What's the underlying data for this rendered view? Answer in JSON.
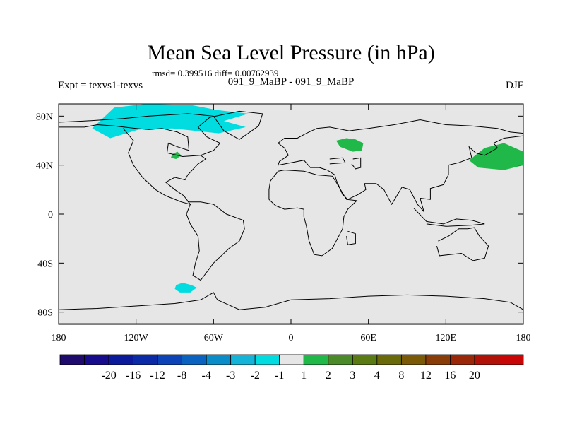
{
  "chart_data": {
    "type": "heatmap",
    "title": "Mean Sea Level Pressure (in hPa)",
    "stats_line": "rmsd= 0.399516 diff= 0.00762939",
    "experiment_label": "Expt = texvs1-texvs",
    "run_label": "091_9_MaBP - 091_9_MaBP",
    "season": "DJF",
    "x_tick_labels": [
      "180",
      "120W",
      "60W",
      "0",
      "60E",
      "120E",
      "180"
    ],
    "x_tick_values": [
      -180,
      -120,
      -60,
      0,
      60,
      120,
      180
    ],
    "y_tick_labels": [
      "80N",
      "40N",
      "0",
      "40S",
      "80S"
    ],
    "y_tick_values": [
      80,
      40,
      0,
      -40,
      -80
    ],
    "xlim": [
      -180,
      180
    ],
    "ylim": [
      -90,
      90
    ],
    "colorbar": {
      "labels": [
        "-20",
        "-16",
        "-12",
        "-8",
        "-4",
        "-3",
        "-2",
        "-1",
        "1",
        "2",
        "3",
        "4",
        "8",
        "12",
        "16",
        "20"
      ],
      "colors": [
        "#1f0a6e",
        "#160c8c",
        "#0a1a9a",
        "#0a2aa8",
        "#0c44b8",
        "#0a63c0",
        "#0a8cc8",
        "#14b4d8",
        "#00dce0",
        "#e6e6e6",
        "#20b848",
        "#4a8a28",
        "#5a7a14",
        "#6a6a0a",
        "#7a5a06",
        "#8a3c08",
        "#9a2808",
        "#b01208",
        "#c80606"
      ]
    },
    "anomaly_regions": [
      {
        "name": "north-america-arctic-negative",
        "category": "-2 to -1",
        "color": "#00dce0",
        "points": [
          [
            -137,
            87
          ],
          [
            -112,
            90
          ],
          [
            -77,
            89
          ],
          [
            -57,
            85
          ],
          [
            -33,
            82
          ],
          [
            -52,
            76
          ],
          [
            -35,
            71
          ],
          [
            -56,
            66
          ],
          [
            -92,
            70
          ],
          [
            -118,
            69
          ],
          [
            -140,
            62
          ],
          [
            -154,
            70
          ]
        ]
      },
      {
        "name": "south-pacific-negative",
        "category": "-2 to -1",
        "color": "#00dce0",
        "points": [
          [
            -89,
            -58
          ],
          [
            -84,
            -56
          ],
          [
            -77,
            -58
          ],
          [
            -73,
            -60
          ],
          [
            -78,
            -64
          ],
          [
            -86,
            -64
          ],
          [
            -90,
            -61
          ]
        ]
      },
      {
        "name": "caspian-positive",
        "category": "1 to 2",
        "color": "#20b848",
        "points": [
          [
            35,
            60
          ],
          [
            43,
            62
          ],
          [
            50,
            61
          ],
          [
            56,
            58
          ],
          [
            55,
            52
          ],
          [
            48,
            51
          ],
          [
            38,
            55
          ]
        ]
      },
      {
        "name": "north-pacific-positive",
        "category": "1 to 2",
        "color": "#20b848",
        "points": [
          [
            138,
            44
          ],
          [
            150,
            54
          ],
          [
            165,
            58
          ],
          [
            180,
            51
          ],
          [
            180,
            40
          ],
          [
            165,
            36
          ],
          [
            145,
            38
          ]
        ]
      },
      {
        "name": "rockies-small-positive",
        "category": "1 to 2",
        "color": "#20b848",
        "points": [
          [
            -92,
            49
          ],
          [
            -88,
            51
          ],
          [
            -85,
            48
          ],
          [
            -89,
            45
          ],
          [
            -93,
            46
          ]
        ]
      }
    ],
    "coastlines": [
      [
        [
          -180,
          71
        ],
        [
          -160,
          71
        ],
        [
          -150,
          73
        ],
        [
          -137,
          72
        ],
        [
          -120,
          70
        ],
        [
          -110,
          69
        ],
        [
          -100,
          70
        ],
        [
          -88,
          67
        ],
        [
          -80,
          63
        ],
        [
          -79,
          52
        ],
        [
          -88,
          55
        ],
        [
          -95,
          58
        ],
        [
          -96,
          50
        ],
        [
          -84,
          47
        ],
        [
          -70,
          48
        ],
        [
          -60,
          52
        ],
        [
          -55,
          58
        ],
        [
          -65,
          63
        ],
        [
          -72,
          71
        ],
        [
          -63,
          79
        ],
        [
          -40,
          84
        ],
        [
          -22,
          82
        ],
        [
          -25,
          72
        ],
        [
          -40,
          61
        ],
        [
          -52,
          68
        ],
        [
          -60,
          80
        ],
        [
          -80,
          82
        ],
        [
          -110,
          80
        ],
        [
          -130,
          78
        ],
        [
          -160,
          76
        ],
        [
          -180,
          75
        ]
      ],
      [
        [
          -130,
          70
        ],
        [
          -122,
          60
        ],
        [
          -126,
          50
        ],
        [
          -122,
          40
        ],
        [
          -115,
          30
        ],
        [
          -105,
          20
        ],
        [
          -97,
          15
        ],
        [
          -85,
          10
        ],
        [
          -78,
          8
        ],
        [
          -83,
          15
        ],
        [
          -90,
          20
        ],
        [
          -97,
          26
        ],
        [
          -90,
          30
        ],
        [
          -82,
          28
        ],
        [
          -80,
          32
        ],
        [
          -72,
          41
        ],
        [
          -66,
          45
        ],
        [
          -70,
          48
        ]
      ],
      [
        [
          -80,
          10
        ],
        [
          -70,
          10
        ],
        [
          -60,
          8
        ],
        [
          -50,
          0
        ],
        [
          -37,
          -5
        ],
        [
          -36,
          -12
        ],
        [
          -40,
          -22
        ],
        [
          -48,
          -28
        ],
        [
          -55,
          -35
        ],
        [
          -60,
          -40
        ],
        [
          -65,
          -47
        ],
        [
          -70,
          -54
        ],
        [
          -76,
          -50
        ],
        [
          -74,
          -40
        ],
        [
          -71,
          -30
        ],
        [
          -72,
          -18
        ],
        [
          -78,
          -8
        ],
        [
          -81,
          0
        ],
        [
          -78,
          8
        ]
      ],
      [
        [
          -10,
          40
        ],
        [
          -9,
          43
        ],
        [
          -2,
          48
        ],
        [
          -5,
          54
        ],
        [
          -10,
          58
        ],
        [
          -5,
          62
        ],
        [
          5,
          62
        ],
        [
          12,
          66
        ],
        [
          20,
          70
        ],
        [
          30,
          71
        ],
        [
          45,
          68
        ],
        [
          60,
          70
        ],
        [
          80,
          73
        ],
        [
          100,
          77
        ],
        [
          120,
          73
        ],
        [
          140,
          72
        ],
        [
          160,
          70
        ],
        [
          170,
          67
        ],
        [
          180,
          66
        ]
      ],
      [
        [
          180,
          64
        ],
        [
          165,
          62
        ],
        [
          157,
          58
        ],
        [
          160,
          54
        ],
        [
          150,
          48
        ],
        [
          143,
          50
        ],
        [
          138,
          55
        ],
        [
          140,
          46
        ],
        [
          130,
          42
        ],
        [
          122,
          40
        ],
        [
          122,
          32
        ],
        [
          118,
          24
        ],
        [
          108,
          21
        ],
        [
          108,
          12
        ],
        [
          100,
          13
        ],
        [
          103,
          2
        ],
        [
          98,
          8
        ],
        [
          92,
          20
        ],
        [
          86,
          22
        ],
        [
          78,
          8
        ],
        [
          72,
          20
        ],
        [
          66,
          25
        ],
        [
          57,
          25
        ],
        [
          58,
          20
        ],
        [
          52,
          16
        ],
        [
          44,
          12
        ],
        [
          40,
          16
        ],
        [
          35,
          28
        ],
        [
          34,
          32
        ],
        [
          28,
          36
        ],
        [
          22,
          38
        ],
        [
          15,
          38
        ],
        [
          10,
          44
        ],
        [
          0,
          42
        ],
        [
          -10,
          40
        ]
      ],
      [
        [
          -10,
          35
        ],
        [
          -16,
          27
        ],
        [
          -17,
          20
        ],
        [
          -17,
          12
        ],
        [
          -12,
          7
        ],
        [
          -5,
          4
        ],
        [
          5,
          5
        ],
        [
          10,
          4
        ],
        [
          10,
          -2
        ],
        [
          12,
          -10
        ],
        [
          14,
          -22
        ],
        [
          18,
          -33
        ],
        [
          24,
          -34
        ],
        [
          32,
          -28
        ],
        [
          36,
          -20
        ],
        [
          40,
          -12
        ],
        [
          41,
          -2
        ],
        [
          44,
          4
        ],
        [
          51,
          11
        ],
        [
          43,
          12
        ],
        [
          35,
          26
        ],
        [
          32,
          31
        ],
        [
          20,
          32
        ],
        [
          10,
          35
        ],
        [
          -5,
          36
        ],
        [
          -10,
          35
        ]
      ],
      [
        [
          44,
          -14
        ],
        [
          50,
          -16
        ],
        [
          50,
          -24
        ],
        [
          44,
          -25
        ],
        [
          43,
          -18
        ]
      ],
      [
        [
          114,
          -22
        ],
        [
          122,
          -18
        ],
        [
          130,
          -12
        ],
        [
          137,
          -12
        ],
        [
          142,
          -11
        ],
        [
          146,
          -18
        ],
        [
          153,
          -26
        ],
        [
          150,
          -36
        ],
        [
          141,
          -38
        ],
        [
          132,
          -32
        ],
        [
          115,
          -34
        ],
        [
          113,
          -26
        ]
      ],
      [
        [
          -180,
          -78
        ],
        [
          -150,
          -77
        ],
        [
          -120,
          -75
        ],
        [
          -90,
          -73
        ],
        [
          -70,
          -70
        ],
        [
          -60,
          -64
        ],
        [
          -57,
          -70
        ],
        [
          -40,
          -78
        ],
        [
          -20,
          -76
        ],
        [
          0,
          -70
        ],
        [
          30,
          -69
        ],
        [
          60,
          -67
        ],
        [
          90,
          -66
        ],
        [
          120,
          -67
        ],
        [
          150,
          -69
        ],
        [
          170,
          -72
        ],
        [
          180,
          -78
        ]
      ],
      [
        [
          95,
          5
        ],
        [
          105,
          -6
        ],
        [
          118,
          -8
        ],
        [
          128,
          -4
        ],
        [
          140,
          -5
        ],
        [
          150,
          -8
        ],
        [
          140,
          -9
        ],
        [
          120,
          -10
        ],
        [
          105,
          -8
        ]
      ],
      [
        [
          30,
          45
        ],
        [
          40,
          46
        ],
        [
          42,
          42
        ],
        [
          30,
          41
        ]
      ],
      [
        [
          48,
          45
        ],
        [
          54,
          46
        ],
        [
          54,
          38
        ],
        [
          50,
          37
        ],
        [
          47,
          41
        ]
      ]
    ]
  }
}
